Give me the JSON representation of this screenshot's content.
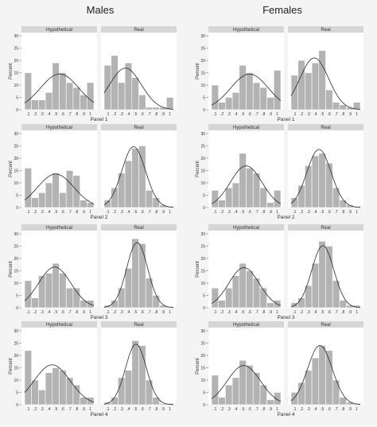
{
  "sections": [
    {
      "title": "Males"
    },
    {
      "title": "Females"
    }
  ],
  "y_axis": {
    "label": "Percent",
    "ticks": [
      0,
      5,
      10,
      15,
      20,
      25,
      30
    ],
    "ylim": [
      0,
      30
    ]
  },
  "x_axis_ticks": {
    "hypothetical_males": [
      ".1",
      ".2",
      ".3",
      ".4",
      ".5",
      ".6",
      ".7",
      ".8",
      ".9",
      "1"
    ],
    "standard": [
      ".1",
      ".2",
      ".3",
      ".4",
      ".5",
      ".6",
      ".7",
      ".8",
      ".9",
      "1"
    ]
  },
  "strip_labels": [
    "Hypothetical",
    "Real"
  ],
  "panel_labels": [
    "Panel 1",
    "Panel 2",
    "Panel 3",
    "Panel 4"
  ],
  "colors": {
    "bar_fill": "#b3b3b3",
    "bar_stroke": "#ffffff",
    "strip_fill": "#d6d6d6",
    "panel_bg": "#ffffff",
    "curve": "#2b2b2b"
  },
  "chart_data": [
    {
      "type": "bar",
      "section": "Males",
      "panel": "Panel 1",
      "facet": "Hypothetical",
      "x": [
        0.1,
        0.2,
        0.3,
        0.4,
        0.5,
        0.6,
        0.7,
        0.8,
        0.9,
        1.0
      ],
      "values": [
        15,
        4,
        4,
        7,
        19,
        15,
        11,
        9,
        6,
        11
      ],
      "overlay": "normal density"
    },
    {
      "type": "bar",
      "section": "Males",
      "panel": "Panel 1",
      "facet": "Real",
      "x": [
        0.1,
        0.2,
        0.3,
        0.4,
        0.5,
        0.6,
        0.7,
        0.8,
        0.9,
        1.0
      ],
      "values": [
        18,
        22,
        11,
        19,
        13,
        6,
        1,
        1,
        1,
        5
      ],
      "overlay": "normal density"
    },
    {
      "type": "bar",
      "section": "Males",
      "panel": "Panel 2",
      "facet": "Hypothetical",
      "x": [
        0.1,
        0.2,
        0.3,
        0.4,
        0.5,
        0.6,
        0.7,
        0.8,
        0.9,
        1.0
      ],
      "values": [
        16,
        4,
        6,
        10,
        14,
        6,
        15,
        13,
        3,
        2
      ],
      "overlay": "normal density"
    },
    {
      "type": "bar",
      "section": "Males",
      "panel": "Panel 2",
      "facet": "Real",
      "x": [
        0.1,
        0.2,
        0.3,
        0.4,
        0.5,
        0.6,
        0.7,
        0.8,
        0.9,
        1.0
      ],
      "values": [
        3,
        8,
        14,
        19,
        24,
        25,
        7,
        4,
        1,
        0.5
      ],
      "overlay": "normal density"
    },
    {
      "type": "bar",
      "section": "Males",
      "panel": "Panel 3",
      "facet": "Hypothetical",
      "x": [
        0.1,
        0.2,
        0.3,
        0.4,
        0.5,
        0.6,
        0.7,
        0.8,
        0.9,
        1.0
      ],
      "values": [
        11,
        4,
        13,
        14,
        18,
        14,
        8,
        8,
        3,
        3
      ],
      "overlay": "normal density"
    },
    {
      "type": "bar",
      "section": "Males",
      "panel": "Panel 3",
      "facet": "Real",
      "x": [
        0.1,
        0.2,
        0.3,
        0.4,
        0.5,
        0.6,
        0.7,
        0.8,
        0.9,
        1.0
      ],
      "values": [
        1,
        3,
        8,
        16,
        28,
        26,
        12,
        5,
        1,
        0.5
      ],
      "overlay": "normal density"
    },
    {
      "type": "bar",
      "section": "Males",
      "panel": "Panel 4",
      "facet": "Hypothetical",
      "x": [
        0.1,
        0.2,
        0.3,
        0.4,
        0.5,
        0.6,
        0.7,
        0.8,
        0.9,
        1.0
      ],
      "values": [
        22,
        10,
        6,
        13,
        15,
        14,
        11,
        8,
        3,
        3
      ],
      "overlay": "normal density"
    },
    {
      "type": "bar",
      "section": "Males",
      "panel": "Panel 4",
      "facet": "Real",
      "x": [
        0.1,
        0.2,
        0.3,
        0.4,
        0.5,
        0.6,
        0.7,
        0.8,
        0.9,
        1.0
      ],
      "values": [
        1,
        3,
        11,
        14,
        26,
        24,
        10,
        3,
        0.5,
        0.5
      ],
      "overlay": "normal density"
    },
    {
      "type": "bar",
      "section": "Females",
      "panel": "Panel 1",
      "facet": "Hypothetical",
      "x": [
        0.1,
        0.2,
        0.3,
        0.4,
        0.5,
        0.6,
        0.7,
        0.8,
        0.9,
        1.0
      ],
      "values": [
        10,
        3,
        5,
        7,
        18,
        15,
        11,
        9,
        5,
        16
      ],
      "overlay": "normal density"
    },
    {
      "type": "bar",
      "section": "Females",
      "panel": "Panel 1",
      "facet": "Real",
      "x": [
        0.1,
        0.2,
        0.3,
        0.4,
        0.5,
        0.6,
        0.7,
        0.8,
        0.9,
        1.0
      ],
      "values": [
        14,
        20,
        15,
        19,
        24,
        8,
        3,
        2,
        1,
        3
      ],
      "overlay": "normal density"
    },
    {
      "type": "bar",
      "section": "Females",
      "panel": "Panel 2",
      "facet": "Hypothetical",
      "x": [
        0.1,
        0.2,
        0.3,
        0.4,
        0.5,
        0.6,
        0.7,
        0.8,
        0.9,
        1.0
      ],
      "values": [
        7,
        3,
        8,
        10,
        22,
        16,
        14,
        8,
        2,
        7
      ],
      "overlay": "normal density"
    },
    {
      "type": "bar",
      "section": "Females",
      "panel": "Panel 2",
      "facet": "Real",
      "x": [
        0.1,
        0.2,
        0.3,
        0.4,
        0.5,
        0.6,
        0.7,
        0.8,
        0.9,
        1.0
      ],
      "values": [
        4,
        9,
        17,
        21,
        22,
        18,
        8,
        3,
        1,
        0.5
      ],
      "overlay": "normal density"
    },
    {
      "type": "bar",
      "section": "Females",
      "panel": "Panel 3",
      "facet": "Hypothetical",
      "x": [
        0.1,
        0.2,
        0.3,
        0.4,
        0.5,
        0.6,
        0.7,
        0.8,
        0.9,
        1.0
      ],
      "values": [
        8,
        3,
        8,
        13,
        18,
        15,
        12,
        8,
        2,
        3
      ],
      "overlay": "normal density"
    },
    {
      "type": "bar",
      "section": "Females",
      "panel": "Panel 3",
      "facet": "Real",
      "x": [
        0.1,
        0.2,
        0.3,
        0.4,
        0.5,
        0.6,
        0.7,
        0.8,
        0.9,
        1.0
      ],
      "values": [
        2,
        4,
        9,
        18,
        27,
        25,
        11,
        3,
        1,
        1
      ],
      "overlay": "normal density"
    },
    {
      "type": "bar",
      "section": "Females",
      "panel": "Panel 4",
      "facet": "Hypothetical",
      "x": [
        0.1,
        0.2,
        0.3,
        0.4,
        0.5,
        0.6,
        0.7,
        0.8,
        0.9,
        1.0
      ],
      "values": [
        12,
        3,
        8,
        11,
        18,
        16,
        13,
        8,
        2,
        5
      ],
      "overlay": "normal density"
    },
    {
      "type": "bar",
      "section": "Females",
      "panel": "Panel 4",
      "facet": "Real",
      "x": [
        0.1,
        0.2,
        0.3,
        0.4,
        0.5,
        0.6,
        0.7,
        0.8,
        0.9,
        1.0
      ],
      "values": [
        5,
        9,
        14,
        19,
        24,
        22,
        10,
        3,
        1,
        0.5
      ],
      "overlay": "normal density"
    }
  ]
}
